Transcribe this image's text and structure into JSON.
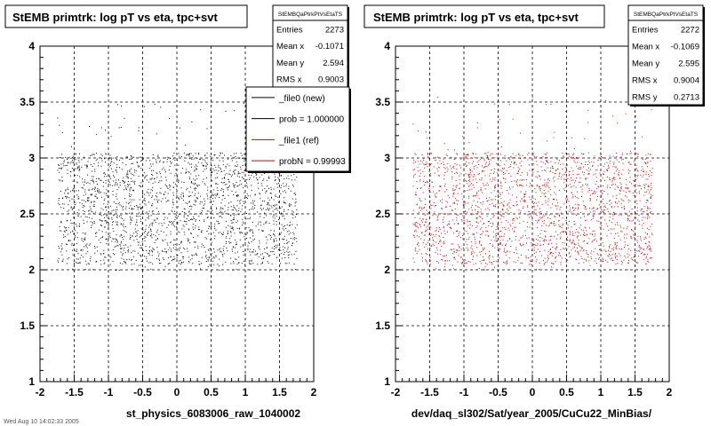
{
  "chart_data": [
    {
      "type": "scatter",
      "title": "StEMB primtrk: log pT vs eta, tpc+svt",
      "stats_box": {
        "name": "StEMBQaPtrkPtVsEtaTS",
        "rows": [
          {
            "label": "Entries",
            "value": "2273"
          },
          {
            "label": "Mean x",
            "value": "-0.1071"
          },
          {
            "label": "Mean y",
            "value": "2.594"
          },
          {
            "label": "RMS x",
            "value": "0.9003"
          }
        ]
      },
      "legend": {
        "placement": "top-right",
        "entries": [
          {
            "label": "_file0 (new)",
            "color": "#000000"
          },
          {
            "label": "prob = 1.000000",
            "color": "#000000"
          },
          {
            "label": "_file1 (ref)",
            "color": "#cc0000"
          },
          {
            "label": "probN = 0.99993",
            "color": "#cc0000"
          }
        ]
      },
      "xlabel": "st_physics_6083006_raw_1040002",
      "ylabel": "",
      "xlim": [
        -2,
        2
      ],
      "ylim": [
        1,
        4
      ],
      "xticks": [
        "-2",
        "-1.5",
        "-1",
        "-0.5",
        "0",
        "0.5",
        "1",
        "1.5",
        "2"
      ],
      "yticks": [
        "1",
        "1.5",
        "2",
        "2.5",
        "3",
        "3.5",
        "4"
      ],
      "grid": true,
      "series": [
        {
          "color": "#000000",
          "entries": 2273,
          "x_range": [
            -1.75,
            1.75
          ],
          "y_core_range": [
            2.05,
            3.05
          ],
          "y_sparse_range": [
            2.0,
            3.5
          ]
        }
      ]
    },
    {
      "type": "scatter",
      "title": "StEMB primtrk: log pT vs eta, tpc+svt",
      "stats_box": {
        "name": "StEMBQaPtrkPtVsEtaTS",
        "rows": [
          {
            "label": "Entries",
            "value": "2272"
          },
          {
            "label": "Mean x",
            "value": "-0.1069"
          },
          {
            "label": "Mean y",
            "value": "2.595"
          },
          {
            "label": "RMS x",
            "value": "0.9004"
          },
          {
            "label": "RMS y",
            "value": "0.2713"
          }
        ]
      },
      "xlabel": "dev/daq_sl302/Sat/year_2005/CuCu22_MinBias/",
      "ylabel": "",
      "xlim": [
        -2,
        2
      ],
      "ylim": [
        1,
        4
      ],
      "xticks": [
        "-2",
        "-1.5",
        "-1",
        "-0.5",
        "0",
        "0.5",
        "1",
        "1.5",
        "2"
      ],
      "yticks": [
        "1",
        "1.5",
        "2",
        "2.5",
        "3",
        "3.5",
        "4"
      ],
      "grid": true,
      "series": [
        {
          "color": "#cc0000",
          "entries": 2272,
          "x_range": [
            -1.75,
            1.75
          ],
          "y_core_range": [
            2.05,
            3.05
          ],
          "y_sparse_range": [
            2.0,
            3.6
          ]
        }
      ]
    }
  ],
  "footer": {
    "timestamp": "Wed Aug 10 14:02:33 2005"
  }
}
